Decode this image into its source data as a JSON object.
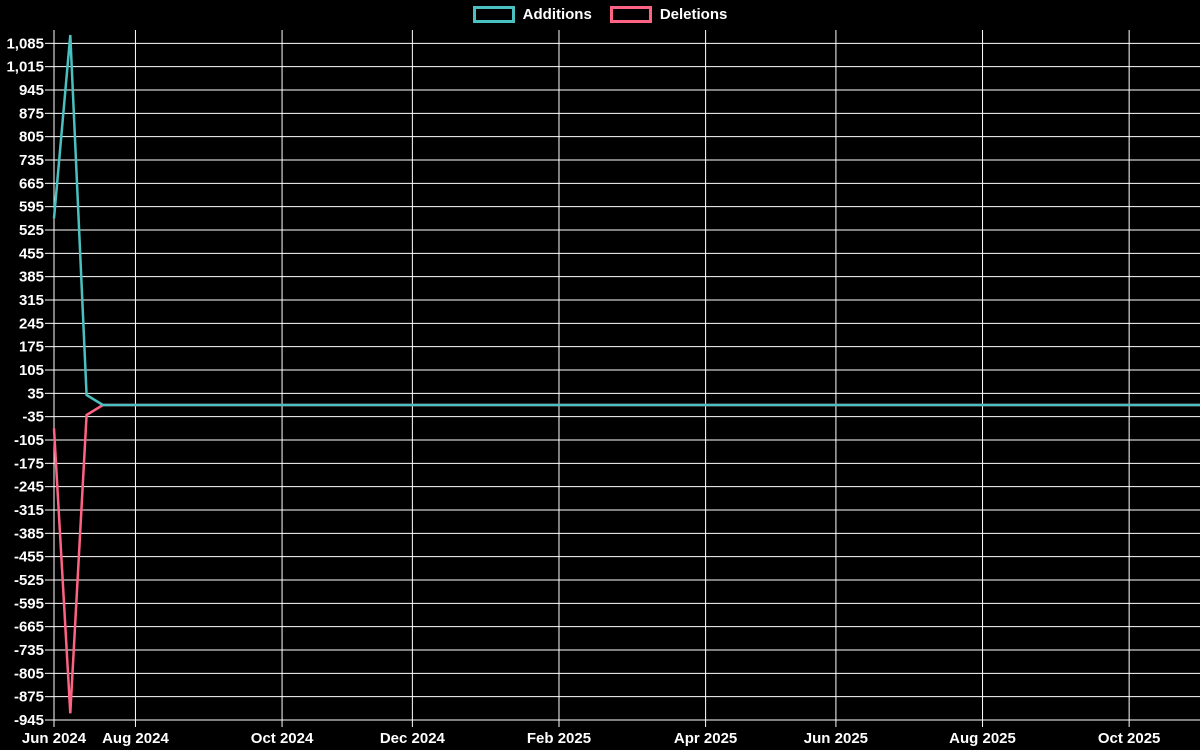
{
  "legend": {
    "items": [
      {
        "label": "Additions",
        "color": "#4bc0c0"
      },
      {
        "label": "Deletions",
        "color": "#ff6384"
      }
    ]
  },
  "chart_data": {
    "type": "line",
    "title": "",
    "description": "Weekly additions and deletions code-frequency chart",
    "background_color": "#000000",
    "grid_color": "#ffffff",
    "text_color": "#ffffff",
    "grid": true,
    "legend_position": "top-center",
    "x_axis": {
      "kind": "weekly-category",
      "ticks": [
        {
          "week": 0,
          "label": "Jun 2024"
        },
        {
          "week": 5,
          "label": "Aug 2024"
        },
        {
          "week": 14,
          "label": "Oct 2024"
        },
        {
          "week": 22,
          "label": "Dec 2024"
        },
        {
          "week": 31,
          "label": "Feb 2025"
        },
        {
          "week": 40,
          "label": "Apr 2025"
        },
        {
          "week": 48,
          "label": "Jun 2025"
        },
        {
          "week": 57,
          "label": "Aug 2025"
        },
        {
          "week": 66,
          "label": "Oct 2025"
        }
      ]
    },
    "y_axis": {
      "min": -945,
      "max": 1085,
      "tick_step": 70,
      "ticks": [
        {
          "value": 1085,
          "label": "1,085"
        },
        {
          "value": 1015,
          "label": "1,015"
        },
        {
          "value": 945,
          "label": "945"
        },
        {
          "value": 875,
          "label": "875"
        },
        {
          "value": 805,
          "label": "805"
        },
        {
          "value": 735,
          "label": "735"
        },
        {
          "value": 665,
          "label": "665"
        },
        {
          "value": 595,
          "label": "595"
        },
        {
          "value": 525,
          "label": "525"
        },
        {
          "value": 455,
          "label": "455"
        },
        {
          "value": 385,
          "label": "385"
        },
        {
          "value": 315,
          "label": "315"
        },
        {
          "value": 245,
          "label": "245"
        },
        {
          "value": 175,
          "label": "175"
        },
        {
          "value": 105,
          "label": "105"
        },
        {
          "value": 35,
          "label": "35"
        },
        {
          "value": -35,
          "label": "-35"
        },
        {
          "value": -105,
          "label": "-105"
        },
        {
          "value": -175,
          "label": "-175"
        },
        {
          "value": -245,
          "label": "-245"
        },
        {
          "value": -315,
          "label": "-315"
        },
        {
          "value": -385,
          "label": "-385"
        },
        {
          "value": -455,
          "label": "-455"
        },
        {
          "value": -525,
          "label": "-525"
        },
        {
          "value": -595,
          "label": "-595"
        },
        {
          "value": -665,
          "label": "-665"
        },
        {
          "value": -735,
          "label": "-735"
        },
        {
          "value": -805,
          "label": "-805"
        },
        {
          "value": -875,
          "label": "-875"
        },
        {
          "value": -945,
          "label": "-945"
        }
      ]
    },
    "series": [
      {
        "name": "Additions",
        "color": "#4bc0c0",
        "values": [
          560,
          1110,
          30,
          0,
          0,
          0,
          0,
          0,
          0,
          0,
          0,
          0,
          0,
          0,
          0,
          0,
          0,
          0,
          0,
          0,
          0,
          0,
          0,
          0,
          0,
          0,
          0,
          0,
          0,
          0,
          0,
          0,
          0,
          0,
          0,
          0,
          0,
          0,
          0,
          0,
          0,
          0,
          0,
          0,
          0,
          0,
          0,
          0,
          0,
          0,
          0,
          0,
          0,
          0,
          0,
          0,
          0,
          0,
          0,
          0,
          0,
          0,
          0,
          0,
          0,
          0,
          0,
          0,
          0,
          0,
          0,
          0
        ]
      },
      {
        "name": "Deletions",
        "color": "#ff6384",
        "values": [
          -70,
          -925,
          -30,
          0,
          0,
          0,
          0,
          0,
          0,
          0,
          0,
          0,
          0,
          0,
          0,
          0,
          0,
          0,
          0,
          0,
          0,
          0,
          0,
          0,
          0,
          0,
          0,
          0,
          0,
          0,
          0,
          0,
          0,
          0,
          0,
          0,
          0,
          0,
          0,
          0,
          0,
          0,
          0,
          0,
          0,
          0,
          0,
          0,
          0,
          0,
          0,
          0,
          0,
          0,
          0,
          0,
          0,
          0,
          0,
          0,
          0,
          0,
          0,
          0,
          0,
          0,
          0,
          0,
          0,
          0,
          0,
          0
        ]
      }
    ]
  }
}
